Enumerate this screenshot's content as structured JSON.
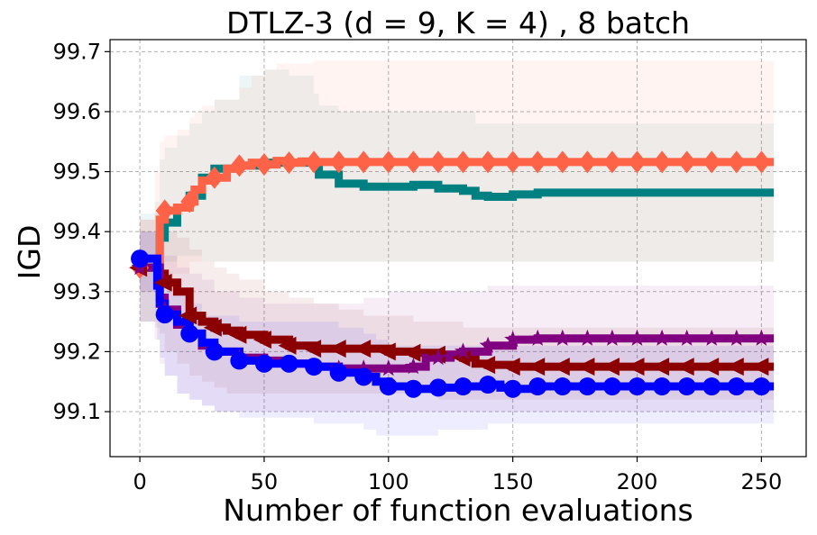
{
  "chart_data": {
    "type": "line",
    "title": "DTLZ-3 (d = 9, K = 4) , 8 batch",
    "xlabel": "Number of function evaluations",
    "ylabel": "IGD",
    "xlim": [
      -12,
      268
    ],
    "ylim": [
      99.025,
      99.72
    ],
    "xticks": [
      0,
      50,
      100,
      150,
      200,
      250
    ],
    "yticks": [
      99.1,
      99.2,
      99.3,
      99.4,
      99.5,
      99.6,
      99.7
    ],
    "xtick_labels": [
      "0",
      "50",
      "100",
      "150",
      "200",
      "250"
    ],
    "ytick_labels": [
      "99.1",
      "99.2",
      "99.3",
      "99.4",
      "99.5",
      "99.6",
      "99.7"
    ],
    "grid": true,
    "series": [
      {
        "name": "teal",
        "color": "#008080",
        "marker": "none",
        "x": [
          0,
          6,
          8,
          10,
          15,
          20,
          25,
          30,
          40,
          50,
          60,
          70,
          72,
          80,
          90,
          100,
          110,
          120,
          130,
          135,
          140,
          150,
          160,
          200,
          255
        ],
        "y": [
          99.34,
          99.34,
          99.39,
          99.415,
          99.44,
          99.46,
          99.49,
          99.505,
          99.51,
          99.515,
          99.515,
          99.515,
          99.495,
          99.48,
          99.475,
          99.475,
          99.478,
          99.472,
          99.468,
          99.46,
          99.458,
          99.462,
          99.465,
          99.465,
          99.465
        ],
        "band_lo": [
          99.25,
          99.3,
          99.33,
          99.35,
          99.36,
          99.36,
          99.35,
          99.35,
          99.35,
          99.35,
          99.35,
          99.35,
          99.35,
          99.35,
          99.35,
          99.35,
          99.35,
          99.35,
          99.35,
          99.35,
          99.35,
          99.35,
          99.35,
          99.35,
          99.35
        ],
        "band_hi": [
          99.43,
          99.45,
          99.52,
          99.54,
          99.56,
          99.58,
          99.6,
          99.62,
          99.66,
          99.67,
          99.66,
          99.63,
          99.61,
          99.6,
          99.6,
          99.6,
          99.6,
          99.6,
          99.6,
          99.58,
          99.58,
          99.58,
          99.58,
          99.58,
          99.58
        ]
      },
      {
        "name": "tomato",
        "color": "#ff6347",
        "marker": "diamond",
        "x": [
          0,
          6,
          8,
          10,
          15,
          20,
          22,
          25,
          30,
          35,
          40,
          45,
          50,
          55,
          60,
          65,
          70,
          255
        ],
        "y": [
          99.34,
          99.34,
          99.42,
          99.435,
          99.44,
          99.45,
          99.47,
          99.485,
          99.49,
          99.505,
          99.51,
          99.515,
          99.512,
          99.518,
          99.515,
          99.517,
          99.516,
          99.516
        ],
        "band_lo": [
          99.3,
          99.31,
          99.32,
          99.33,
          99.33,
          99.35,
          99.35,
          99.35,
          99.35,
          99.35,
          99.35,
          99.35,
          99.35,
          99.35,
          99.35,
          99.35,
          99.35,
          99.35
        ],
        "band_hi": [
          99.42,
          99.5,
          99.55,
          99.56,
          99.57,
          99.59,
          99.6,
          99.61,
          99.62,
          99.62,
          99.64,
          99.66,
          99.67,
          99.68,
          99.68,
          99.68,
          99.685,
          99.685
        ]
      },
      {
        "name": "darkred",
        "color": "#8b0000",
        "marker": "triangle-left",
        "x": [
          0,
          6,
          8,
          10,
          15,
          20,
          25,
          30,
          35,
          40,
          50,
          60,
          70,
          80,
          90,
          100,
          110,
          120,
          130,
          135,
          140,
          150,
          160,
          255
        ],
        "y": [
          99.34,
          99.34,
          99.33,
          99.315,
          99.3,
          99.26,
          99.25,
          99.24,
          99.235,
          99.228,
          99.22,
          99.21,
          99.205,
          99.205,
          99.205,
          99.2,
          99.198,
          99.195,
          99.19,
          99.18,
          99.178,
          99.175,
          99.175,
          99.175
        ],
        "band_lo": [
          99.25,
          99.24,
          99.23,
          99.2,
          99.18,
          99.16,
          99.15,
          99.14,
          99.13,
          99.13,
          99.13,
          99.13,
          99.13,
          99.13,
          99.13,
          99.13,
          99.13,
          99.12,
          99.12,
          99.12,
          99.12,
          99.12,
          99.12,
          99.12
        ],
        "band_hi": [
          99.42,
          99.43,
          99.42,
          99.4,
          99.39,
          99.37,
          99.35,
          99.34,
          99.33,
          99.32,
          99.3,
          99.29,
          99.28,
          99.27,
          99.26,
          99.26,
          99.25,
          99.25,
          99.24,
          99.24,
          99.24,
          99.24,
          99.24,
          99.24
        ]
      },
      {
        "name": "purple",
        "color": "#800080",
        "marker": "star",
        "x": [
          0,
          6,
          8,
          10,
          15,
          20,
          25,
          30,
          40,
          50,
          60,
          70,
          80,
          90,
          100,
          110,
          115,
          120,
          125,
          130,
          140,
          150,
          160,
          255
        ],
        "y": [
          99.34,
          99.34,
          99.29,
          99.27,
          99.245,
          99.23,
          99.21,
          99.2,
          99.19,
          99.185,
          99.18,
          99.175,
          99.172,
          99.172,
          99.172,
          99.175,
          99.19,
          99.19,
          99.195,
          99.2,
          99.21,
          99.22,
          99.222,
          99.222
        ],
        "band_lo": [
          99.25,
          99.22,
          99.18,
          99.16,
          99.13,
          99.12,
          99.11,
          99.1,
          99.1,
          99.1,
          99.1,
          99.1,
          99.1,
          99.1,
          99.1,
          99.1,
          99.1,
          99.1,
          99.1,
          99.1,
          99.1,
          99.1,
          99.1,
          99.1
        ],
        "band_hi": [
          99.4,
          99.4,
          99.38,
          99.36,
          99.34,
          99.33,
          99.32,
          99.3,
          99.29,
          99.28,
          99.28,
          99.28,
          99.28,
          99.29,
          99.3,
          99.3,
          99.3,
          99.3,
          99.3,
          99.3,
          99.31,
          99.31,
          99.31,
          99.31
        ]
      },
      {
        "name": "blue",
        "color": "#0000ff",
        "marker": "circle",
        "x": [
          0,
          6,
          7,
          8,
          10,
          15,
          20,
          25,
          30,
          40,
          50,
          60,
          70,
          80,
          90,
          95,
          100,
          110,
          120,
          130,
          140,
          145,
          150,
          160,
          255
        ],
        "y": [
          99.355,
          99.355,
          99.31,
          99.28,
          99.262,
          99.25,
          99.23,
          99.215,
          99.2,
          99.185,
          99.18,
          99.18,
          99.175,
          99.165,
          99.158,
          99.15,
          99.142,
          99.138,
          99.14,
          99.142,
          99.145,
          99.14,
          99.138,
          99.142,
          99.142
        ],
        "band_lo": [
          99.3,
          99.25,
          99.22,
          99.19,
          99.16,
          99.13,
          99.12,
          99.11,
          99.1,
          99.09,
          99.09,
          99.09,
          99.08,
          99.08,
          99.07,
          99.06,
          99.06,
          99.06,
          99.07,
          99.07,
          99.08,
          99.08,
          99.08,
          99.08,
          99.08
        ],
        "band_hi": [
          99.4,
          99.4,
          99.35,
          99.33,
          99.31,
          99.3,
          99.28,
          99.26,
          99.26,
          99.25,
          99.25,
          99.25,
          99.25,
          99.24,
          99.23,
          99.22,
          99.21,
          99.21,
          99.21,
          99.21,
          99.21,
          99.21,
          99.21,
          99.21,
          99.21
        ]
      }
    ]
  }
}
